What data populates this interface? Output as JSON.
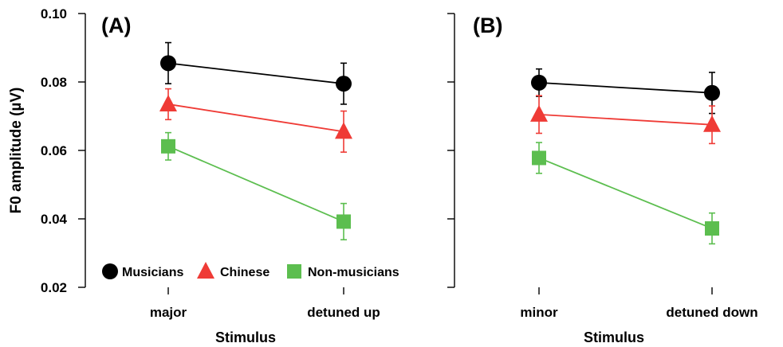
{
  "chart_data": [
    {
      "type": "line",
      "panel_label": "(A)",
      "categories": [
        "major",
        "detuned up"
      ],
      "xlabel": "Stimulus",
      "ylabel": "F0 amplitude (µV)",
      "ylim": [
        0.02,
        0.1
      ],
      "yticks": [
        "0.02",
        "0.04",
        "0.06",
        "0.08",
        "0.10"
      ],
      "grid": false,
      "legend_position": "bottom-left",
      "series": [
        {
          "name": "Musicians",
          "color": "#000000",
          "marker": "circle",
          "values": [
            0.0855,
            0.0795
          ],
          "err": [
            0.006,
            0.006
          ]
        },
        {
          "name": "Chinese",
          "color": "#ef3b36",
          "marker": "triangle",
          "values": [
            0.0735,
            0.0655
          ],
          "err": [
            0.0045,
            0.006
          ]
        },
        {
          "name": "Non-musicians",
          "color": "#5cbe4f",
          "marker": "square",
          "values": [
            0.0612,
            0.0392
          ],
          "err": [
            0.004,
            0.0053
          ]
        }
      ]
    },
    {
      "type": "line",
      "panel_label": "(B)",
      "categories": [
        "minor",
        "detuned down"
      ],
      "xlabel": "Stimulus",
      "ylim": [
        0.02,
        0.1
      ],
      "grid": false,
      "series": [
        {
          "name": "Musicians",
          "color": "#000000",
          "marker": "circle",
          "values": [
            0.0798,
            0.0768
          ],
          "err": [
            0.004,
            0.006
          ]
        },
        {
          "name": "Chinese",
          "color": "#ef3b36",
          "marker": "triangle",
          "values": [
            0.0705,
            0.0675
          ],
          "err": [
            0.0055,
            0.0055
          ]
        },
        {
          "name": "Non-musicians",
          "color": "#5cbe4f",
          "marker": "square",
          "values": [
            0.0578,
            0.0372
          ],
          "err": [
            0.0045,
            0.0045
          ]
        }
      ]
    }
  ]
}
